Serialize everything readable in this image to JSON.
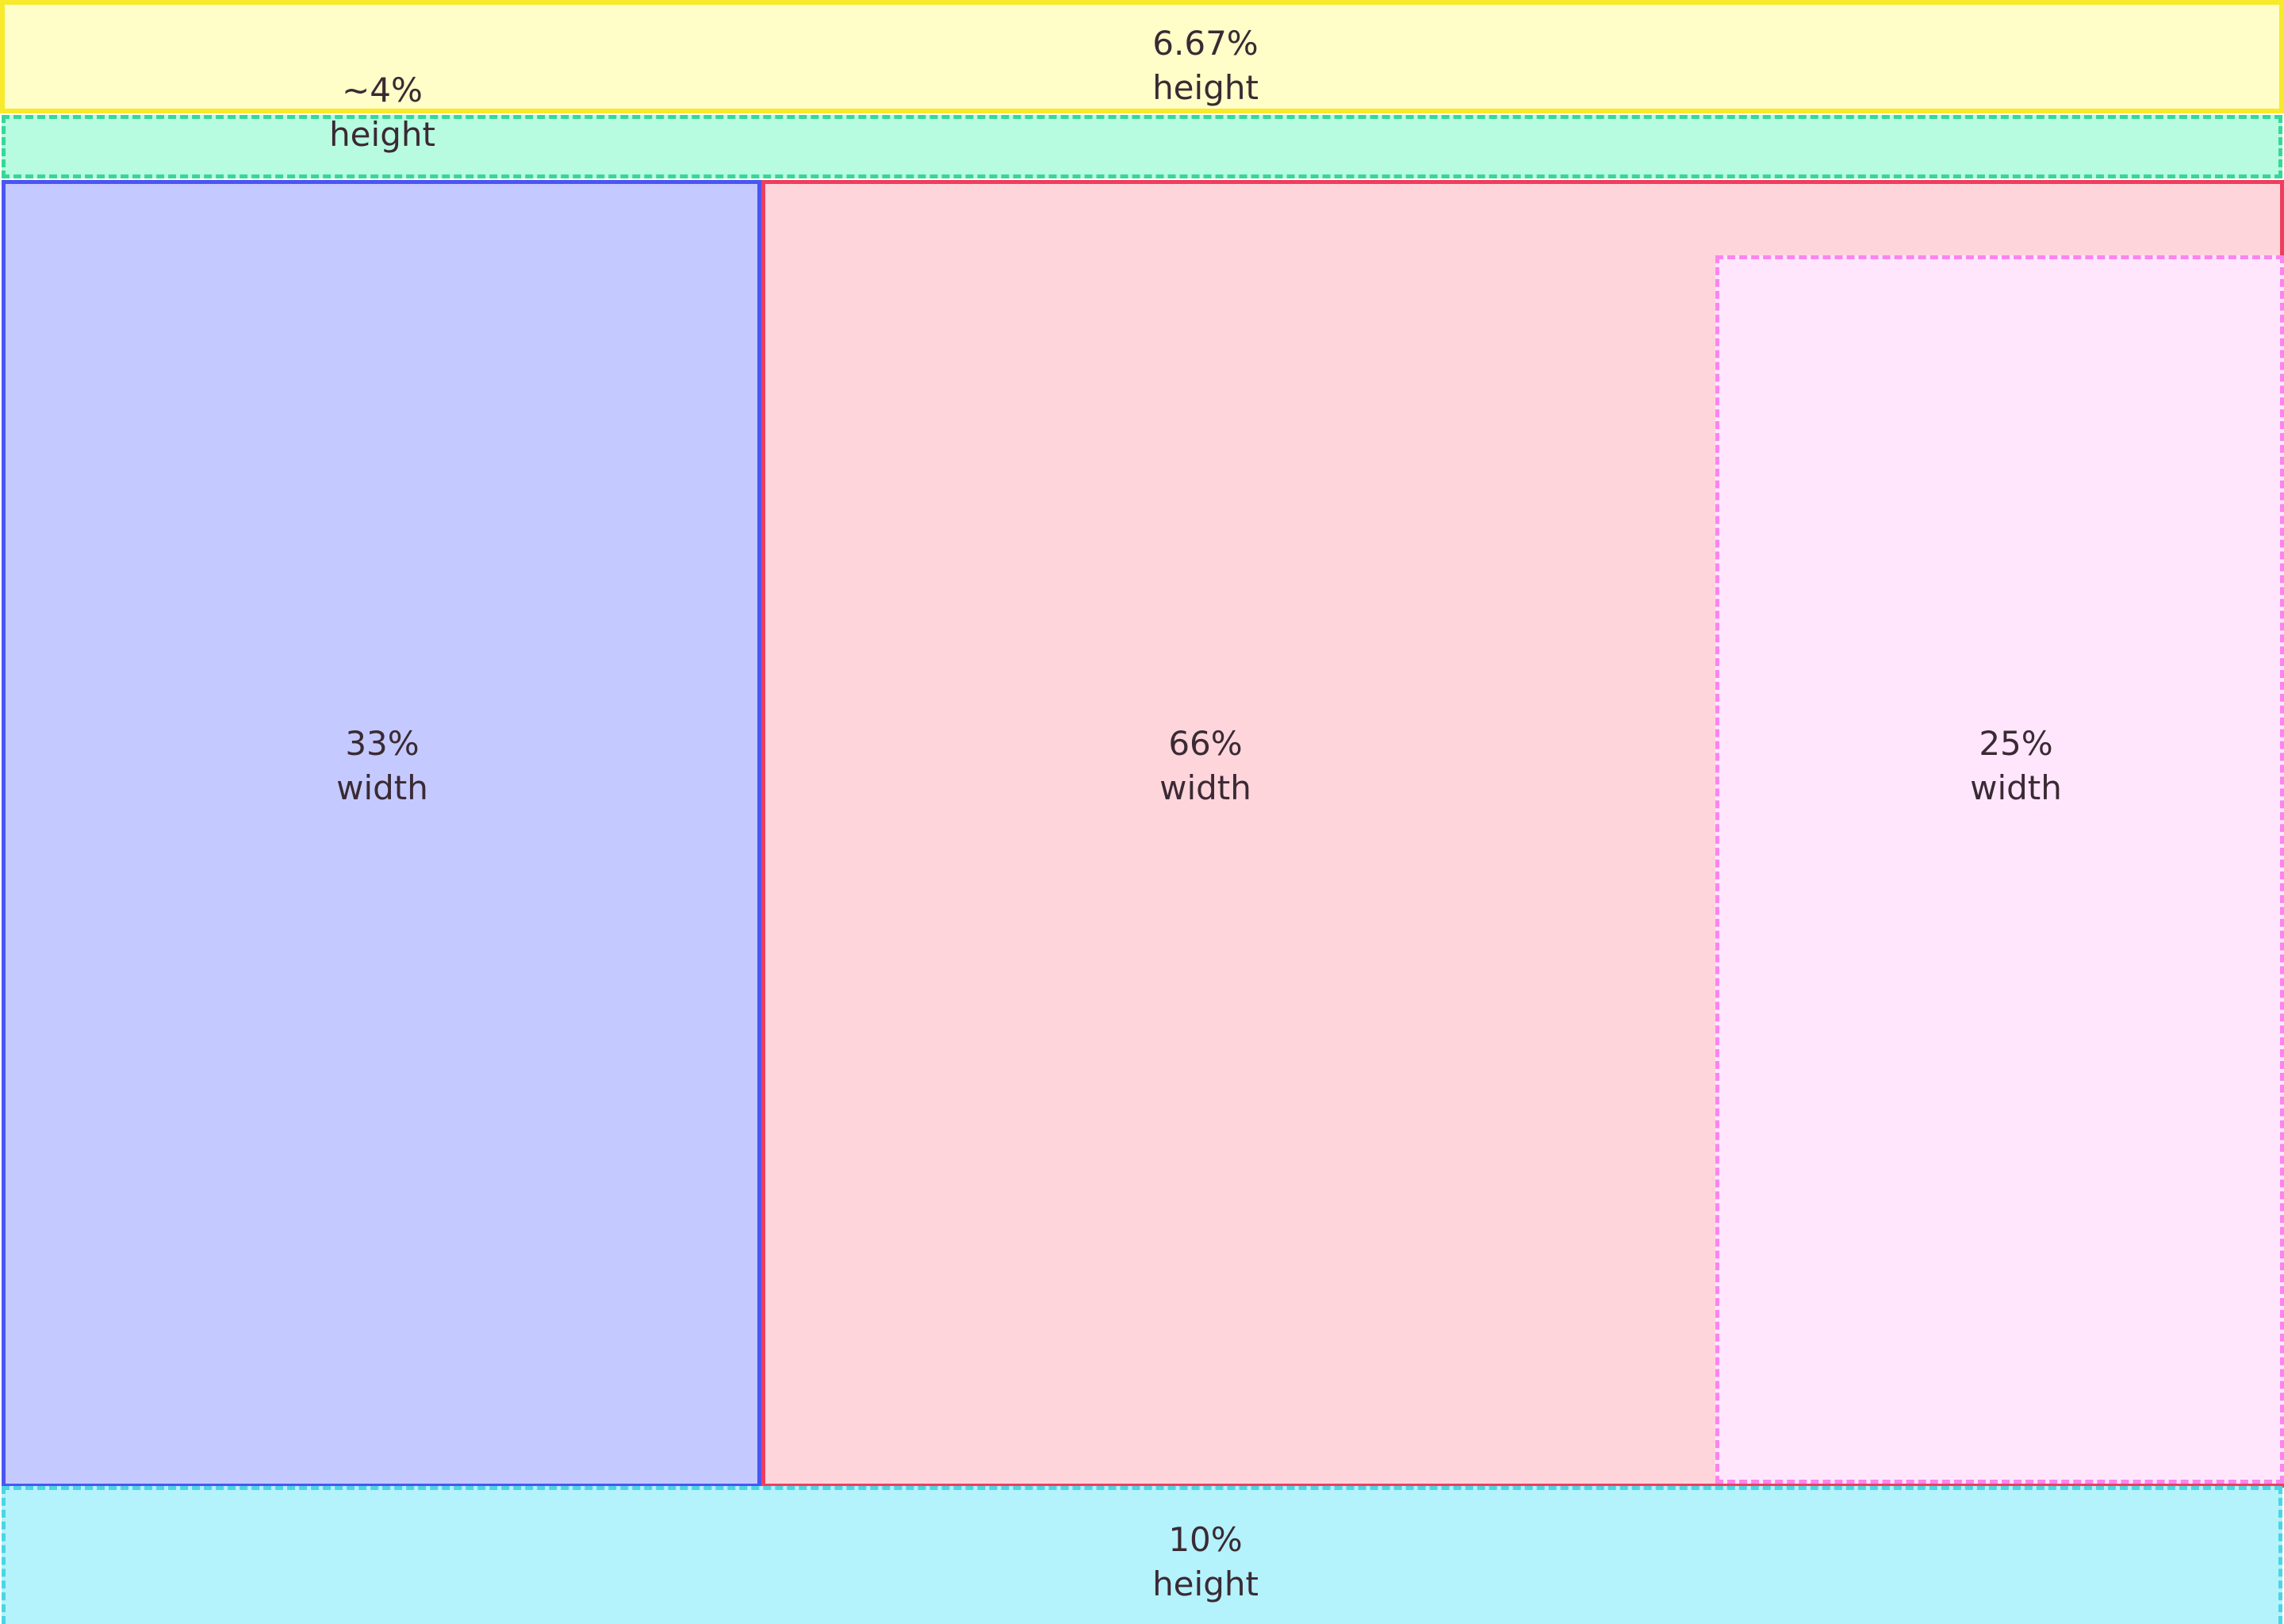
{
  "regions": {
    "top_bar": {
      "value": "6.67%",
      "unit": "height"
    },
    "sub_bar": {
      "value": "~4%",
      "unit": "height"
    },
    "left_col": {
      "value": "33%",
      "unit": "width"
    },
    "right_col": {
      "value": "66%",
      "unit": "width"
    },
    "inner_panel": {
      "value": "25%",
      "unit": "width"
    },
    "bottom_bar": {
      "value": "10%",
      "unit": "height"
    }
  },
  "colors": {
    "top_bar": {
      "fill": "#fffdc8",
      "border": "#f7ea2a"
    },
    "sub_bar": {
      "fill": "#b7fbe0",
      "border": "#36d896"
    },
    "left_col": {
      "fill": "#c4caff",
      "border": "#4c55f3"
    },
    "right_col": {
      "fill": "#ffd5dc",
      "border": "#f03d5e"
    },
    "inner_panel": {
      "fill": "#ffe6fd",
      "border": "#fa84f0"
    },
    "bottom_bar": {
      "fill": "#b4f2fc",
      "border": "#4ad6e2"
    },
    "text": "#3a2a33"
  }
}
